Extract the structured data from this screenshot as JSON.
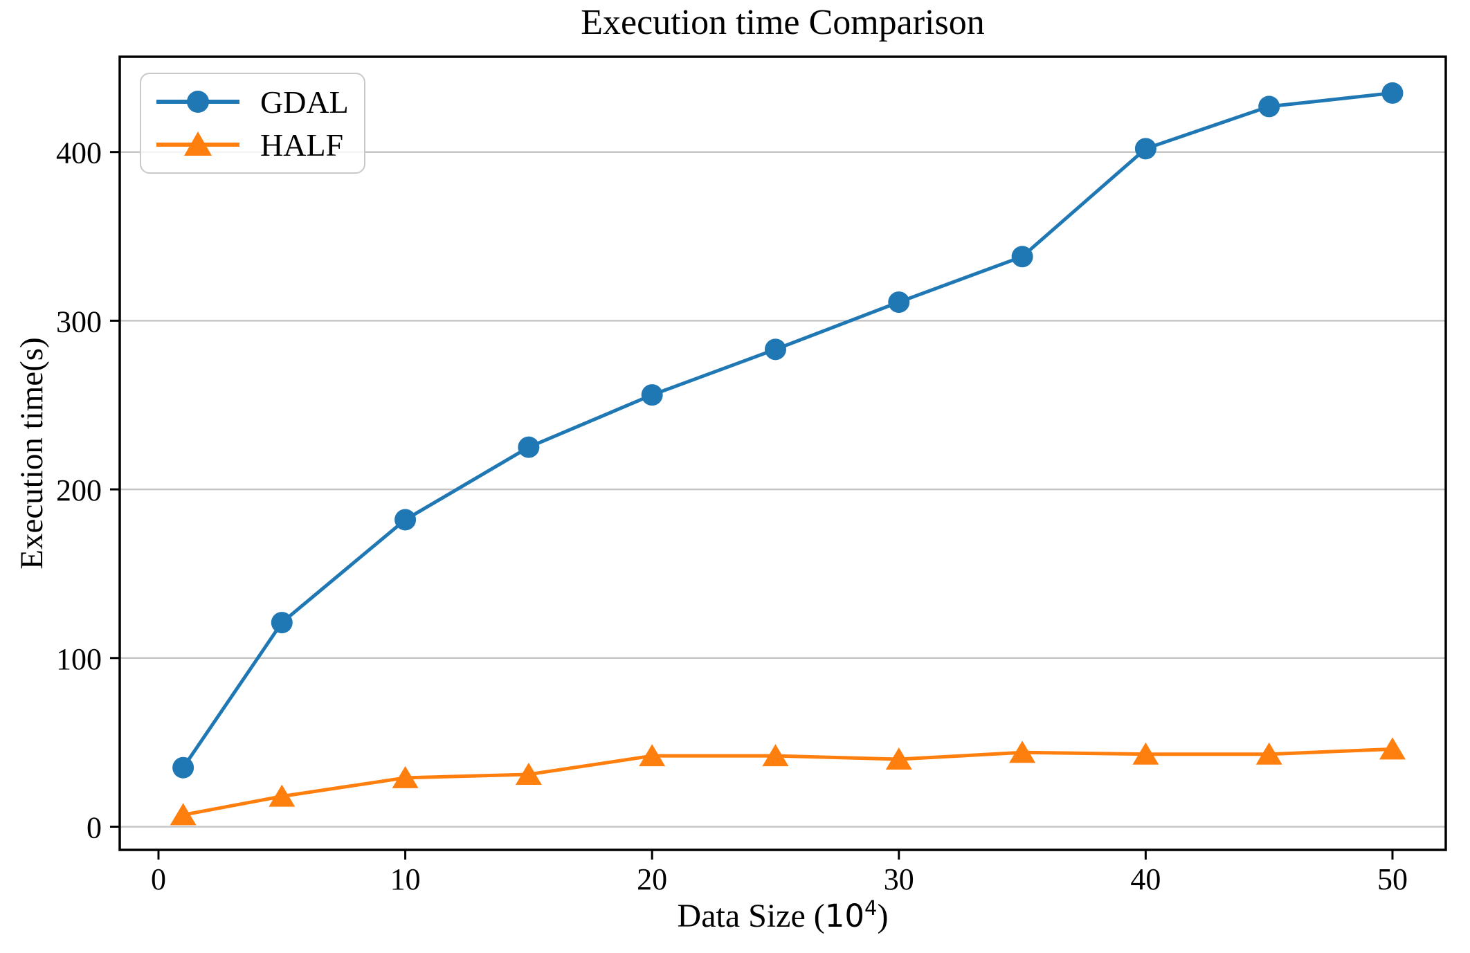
{
  "chart_data": {
    "type": "line",
    "title": "Execution time Comparison",
    "xlabel": "Data Size (10⁴)",
    "xlabel_parts": {
      "prefix": "Data Size (",
      "base": "10",
      "exponent": "4",
      "suffix": ")"
    },
    "ylabel": "Execution time(s)",
    "x": [
      1,
      5,
      10,
      15,
      20,
      25,
      30,
      35,
      40,
      45,
      50
    ],
    "series": [
      {
        "name": "GDAL",
        "color": "#1f77b4",
        "marker": "circle",
        "values": [
          35,
          121,
          182,
          225,
          256,
          283,
          311,
          338,
          402,
          427,
          435
        ]
      },
      {
        "name": "HALF",
        "color": "#ff7f0e",
        "marker": "triangle",
        "values": [
          7,
          18,
          29,
          31,
          42,
          42,
          40,
          44,
          43,
          43,
          46
        ]
      }
    ],
    "xticks": {
      "values": [
        0,
        10,
        20,
        30,
        40,
        50
      ],
      "labels": [
        "0",
        "10",
        "20",
        "30",
        "40",
        "50"
      ]
    },
    "yticks": {
      "values": [
        0,
        100,
        200,
        300,
        400
      ],
      "labels": [
        "0",
        "100",
        "200",
        "300",
        "400"
      ]
    },
    "xlim": [
      -1.57,
      52.16
    ],
    "ylim": [
      -13.75,
      456.5
    ],
    "grid": "horizontal",
    "legend": {
      "position": "top-left",
      "entries": [
        "GDAL",
        "HALF"
      ]
    },
    "colors": {
      "grid": "#c6c6c6",
      "spine": "#000000",
      "background": "#ffffff"
    }
  }
}
